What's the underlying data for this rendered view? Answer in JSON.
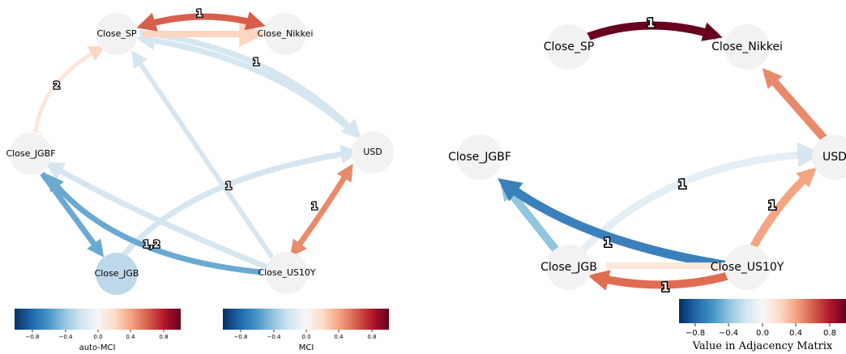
{
  "colors": {
    "node_fill": "#f2f2f2",
    "jgb_fill": "#bcd8e9",
    "red_strong": "#d6604d",
    "red_mid": "#e88a6b",
    "salmon": "#f4a582",
    "peach": "#fbd6c3",
    "peach_pale": "#fde6da",
    "blue_pale": "#d6e6f1",
    "blue_mid": "#6aa9d1",
    "blue_strong": "#3a81bb",
    "blue_light": "#92c5de",
    "dark_red": "#67001f",
    "rdbu": [
      "#053061",
      "#2166ac",
      "#4393c3",
      "#92c5de",
      "#d1e5f0",
      "#f7f7f7",
      "#fddbc7",
      "#f4a582",
      "#d6604d",
      "#b2182b",
      "#67001f"
    ]
  },
  "left_graph": {
    "nodes": {
      "sp": "Close_SP",
      "nikkei": "Close_Nikkei",
      "jgbf": "Close_JGBF",
      "usd": "USD",
      "jgb": "Close_JGB",
      "us10y": "Close_US10Y"
    },
    "edge_labels": {
      "sp_nikkei": "1",
      "jgbf_sp": "2",
      "sp_usd": "1",
      "jgb_usd": "1",
      "usd_us10y": "1",
      "jgbf_jgb": "1,2"
    }
  },
  "right_graph": {
    "nodes": {
      "sp": "Close_SP",
      "nikkei": "Close_Nikkei",
      "jgbf": "Close_JGBF",
      "usd": "USD",
      "jgb": "Close_JGB",
      "us10y": "Close_US10Y"
    },
    "edge_labels": {
      "sp_nikkei": "1",
      "jgb_usd": "1",
      "us10y_usd": "1",
      "us10y_jgbf": "1",
      "us10y_jgb": "1"
    }
  },
  "colorbars": {
    "auto_mci": {
      "title": "auto-MCI",
      "ticks": [
        "−0.8",
        "−0.4",
        "0.0",
        "0.4",
        "0.8"
      ]
    },
    "mci": {
      "title": "MCI",
      "ticks": [
        "−0.8",
        "−0.4",
        "0.0",
        "0.4",
        "0.8"
      ]
    },
    "adjacency": {
      "title": "Value in Adjacency Matrix",
      "ticks": [
        "−0.8",
        "−0.4",
        "0.0",
        "0.4",
        "0.8"
      ]
    }
  }
}
